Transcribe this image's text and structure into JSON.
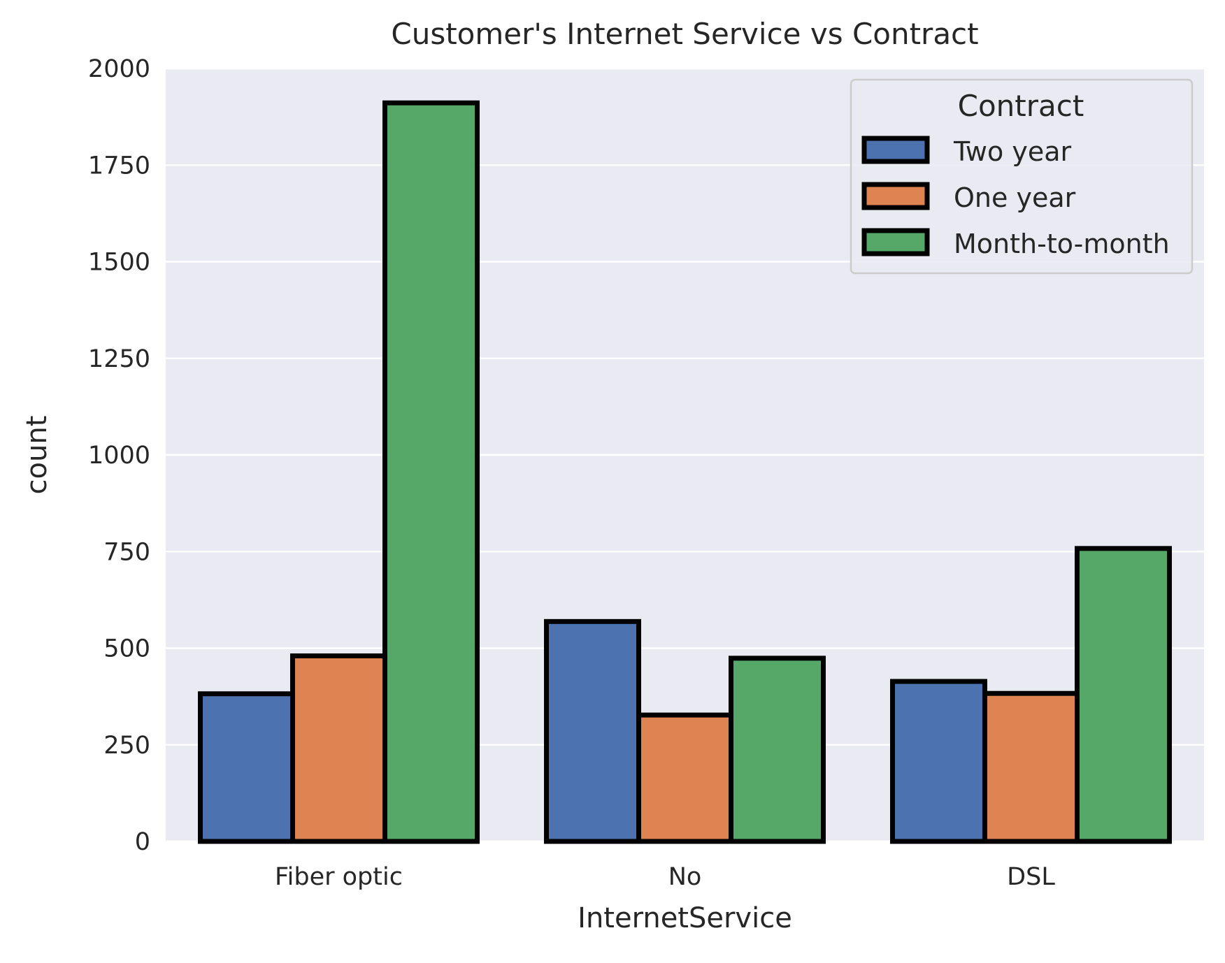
{
  "chart_data": {
    "type": "bar",
    "title": "Customer's Internet Service vs Contract",
    "xlabel": "InternetService",
    "ylabel": "count",
    "categories": [
      "Fiber optic",
      "No",
      "DSL"
    ],
    "series": [
      {
        "name": "Two year",
        "color": "#4c72b0",
        "values": [
          382,
          569,
          414
        ]
      },
      {
        "name": "One year",
        "color": "#dd8452",
        "values": [
          480,
          327,
          383
        ]
      },
      {
        "name": "Month-to-month",
        "color": "#55a868",
        "values": [
          1911,
          474,
          758
        ]
      }
    ],
    "ylim": [
      0,
      2000
    ],
    "yticks": [
      "0",
      "250",
      "500",
      "750",
      "1000",
      "1250",
      "1500",
      "1750",
      "2000"
    ],
    "legend": {
      "title": "Contract",
      "placement": "top-right"
    },
    "grid": true,
    "background_color": "#eaeaf2",
    "grid_color": "#ffffff",
    "edge_color": "#000000"
  }
}
